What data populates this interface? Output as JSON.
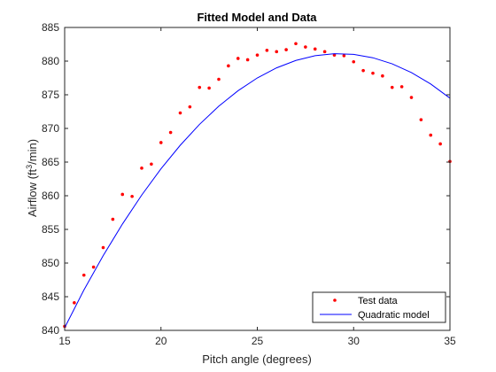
{
  "chart_data": {
    "type": "scatter",
    "title": "Fitted Model and Data",
    "xlabel": "Pitch angle (degrees)",
    "ylabel_parts": {
      "before": "Airflow (ft",
      "superscript": "3",
      "after": "/min)"
    },
    "xlim": [
      15,
      35
    ],
    "ylim": [
      840,
      885
    ],
    "xticks": [
      15,
      20,
      25,
      30,
      35
    ],
    "yticks": [
      840,
      845,
      850,
      855,
      860,
      865,
      870,
      875,
      880,
      885
    ],
    "grid": false,
    "legend_position": "bottom-right",
    "series": [
      {
        "name": "Test data",
        "kind": "points",
        "color": "#ff0000",
        "x": [
          15,
          15.5,
          16,
          16.5,
          17,
          17.5,
          18,
          18.5,
          19,
          19.5,
          20,
          20.5,
          21,
          21.5,
          22,
          22.5,
          23,
          23.5,
          24,
          24.5,
          25,
          25.5,
          26,
          26.5,
          27,
          27.5,
          28,
          28.5,
          29,
          29.5,
          30,
          30.5,
          31,
          31.5,
          32,
          32.5,
          33,
          33.5,
          34,
          34.5,
          35
        ],
        "y": [
          840.6,
          844.1,
          848.2,
          849.4,
          852.3,
          856.5,
          860.2,
          859.9,
          864.1,
          864.7,
          867.9,
          869.4,
          872.3,
          873.2,
          876.1,
          876.0,
          877.3,
          879.3,
          880.4,
          880.2,
          880.9,
          881.6,
          881.4,
          881.7,
          882.6,
          882.1,
          881.8,
          881.4,
          880.9,
          880.8,
          879.9,
          878.6,
          878.2,
          877.8,
          876.1,
          876.2,
          874.6,
          871.3,
          869.0,
          867.7,
          865.1
        ]
      },
      {
        "name": "Quadratic model",
        "kind": "line",
        "color": "#0000ff",
        "x": [
          15,
          16,
          17,
          18,
          19,
          20,
          21,
          22,
          23,
          24,
          25,
          26,
          27,
          28,
          29,
          30,
          31,
          32,
          33,
          34,
          35
        ],
        "y": [
          840.4,
          846.0,
          851.1,
          855.8,
          860.1,
          864.0,
          867.5,
          870.6,
          873.3,
          875.6,
          877.5,
          879.0,
          880.1,
          880.8,
          881.1,
          881.0,
          880.5,
          879.6,
          878.3,
          876.6,
          874.5
        ]
      }
    ]
  }
}
